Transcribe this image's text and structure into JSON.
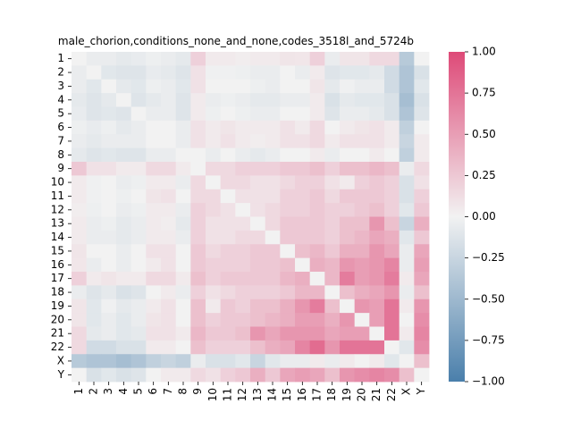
{
  "chart_data": {
    "type": "heatmap",
    "title": "male_chorion,conditions_none_and_none,codes_3518l_and_5724b",
    "xlabel": "",
    "ylabel": "",
    "labels": [
      "1",
      "2",
      "3",
      "4",
      "5",
      "6",
      "7",
      "8",
      "9",
      "10",
      "11",
      "12",
      "13",
      "14",
      "15",
      "16",
      "17",
      "18",
      "19",
      "20",
      "21",
      "22",
      "X",
      "Y"
    ],
    "colorbar": {
      "min": -1.0,
      "max": 1.0,
      "ticks": [
        "1.00",
        "0.75",
        "0.50",
        "0.25",
        "0.00",
        "−0.25",
        "−0.50",
        "−0.75",
        "−1.00"
      ]
    },
    "colors": {
      "negative": "#4a7fab",
      "neutral": "#f2f2f2",
      "positive": "#de4a78"
    },
    "values": [
      [
        0.0,
        -0.05,
        -0.05,
        -0.08,
        -0.06,
        -0.03,
        -0.05,
        -0.08,
        0.2,
        0.05,
        0.05,
        0.03,
        0.05,
        0.05,
        0.08,
        0.07,
        0.2,
        -0.05,
        0.08,
        0.08,
        0.15,
        0.15,
        -0.35,
        0.0
      ],
      [
        -0.05,
        0.0,
        -0.1,
        -0.12,
        -0.12,
        -0.06,
        -0.08,
        -0.12,
        0.1,
        -0.02,
        -0.02,
        -0.03,
        -0.05,
        -0.05,
        0.0,
        -0.05,
        0.05,
        -0.12,
        -0.1,
        -0.1,
        -0.08,
        -0.2,
        -0.4,
        -0.15
      ],
      [
        -0.05,
        -0.1,
        0.0,
        -0.08,
        -0.1,
        -0.03,
        -0.05,
        -0.1,
        0.1,
        0.0,
        0.0,
        0.0,
        -0.03,
        -0.05,
        0.0,
        0.0,
        0.08,
        -0.08,
        -0.02,
        -0.05,
        -0.05,
        -0.2,
        -0.4,
        -0.1
      ],
      [
        -0.08,
        -0.12,
        -0.08,
        0.0,
        -0.12,
        -0.08,
        -0.05,
        -0.12,
        0.05,
        -0.05,
        -0.03,
        -0.05,
        -0.08,
        -0.08,
        -0.05,
        -0.05,
        0.05,
        -0.15,
        -0.08,
        -0.1,
        -0.1,
        -0.15,
        -0.45,
        -0.15
      ],
      [
        -0.06,
        -0.12,
        -0.1,
        -0.12,
        0.0,
        -0.05,
        -0.05,
        -0.12,
        0.05,
        -0.03,
        0.0,
        -0.03,
        -0.05,
        -0.05,
        0.0,
        0.0,
        0.05,
        -0.12,
        -0.05,
        -0.05,
        -0.08,
        -0.15,
        -0.4,
        -0.12
      ],
      [
        -0.03,
        -0.06,
        -0.03,
        -0.08,
        -0.05,
        0.0,
        0.0,
        -0.05,
        0.1,
        0.05,
        0.08,
        0.05,
        0.05,
        0.05,
        0.1,
        0.05,
        0.15,
        0.0,
        0.05,
        0.08,
        0.1,
        0.05,
        -0.3,
        0.0
      ],
      [
        -0.05,
        -0.08,
        -0.05,
        -0.05,
        -0.05,
        0.0,
        0.0,
        -0.05,
        0.1,
        0.05,
        0.1,
        0.05,
        0.03,
        0.05,
        0.1,
        0.1,
        0.15,
        0.05,
        0.1,
        0.1,
        0.1,
        0.05,
        -0.25,
        0.05
      ],
      [
        -0.08,
        -0.12,
        -0.1,
        -0.12,
        -0.12,
        -0.05,
        -0.05,
        0.0,
        0.0,
        -0.05,
        0.0,
        -0.05,
        -0.08,
        -0.05,
        0.0,
        0.0,
        0.05,
        -0.05,
        0.0,
        0.0,
        0.05,
        0.0,
        -0.3,
        0.05
      ],
      [
        0.25,
        0.1,
        0.1,
        0.05,
        0.05,
        0.15,
        0.15,
        0.05,
        0.0,
        0.15,
        0.15,
        0.2,
        0.2,
        0.2,
        0.25,
        0.25,
        0.3,
        0.2,
        0.3,
        0.3,
        0.35,
        0.3,
        -0.05,
        0.15
      ],
      [
        0.05,
        -0.02,
        0.0,
        -0.05,
        -0.03,
        0.05,
        0.05,
        -0.05,
        0.15,
        0.0,
        0.15,
        0.15,
        0.1,
        0.1,
        0.15,
        0.2,
        0.2,
        0.1,
        0.05,
        0.2,
        0.25,
        0.2,
        -0.15,
        0.1
      ],
      [
        0.05,
        -0.02,
        0.0,
        -0.03,
        0.0,
        0.08,
        0.1,
        0.0,
        0.15,
        0.15,
        0.0,
        0.1,
        0.1,
        0.1,
        0.2,
        0.2,
        0.25,
        0.15,
        0.25,
        0.25,
        0.25,
        0.2,
        -0.15,
        0.2
      ],
      [
        0.03,
        -0.03,
        0.0,
        -0.05,
        -0.03,
        0.05,
        0.05,
        -0.05,
        0.2,
        0.15,
        0.1,
        0.0,
        0.1,
        0.15,
        0.2,
        0.2,
        0.25,
        0.2,
        0.2,
        0.25,
        0.3,
        0.2,
        -0.1,
        0.25
      ],
      [
        0.05,
        -0.05,
        -0.03,
        -0.08,
        -0.05,
        0.05,
        0.03,
        -0.08,
        0.2,
        0.1,
        0.1,
        0.1,
        0.0,
        0.15,
        0.25,
        0.25,
        0.25,
        0.2,
        0.3,
        0.3,
        0.55,
        0.3,
        -0.25,
        0.4
      ],
      [
        0.05,
        -0.05,
        -0.05,
        -0.08,
        -0.05,
        0.05,
        0.05,
        -0.05,
        0.2,
        0.1,
        0.1,
        0.15,
        0.15,
        0.0,
        0.25,
        0.25,
        0.25,
        0.2,
        0.3,
        0.35,
        0.45,
        0.4,
        -0.1,
        0.25
      ],
      [
        0.08,
        0.0,
        0.0,
        -0.05,
        0.0,
        0.1,
        0.1,
        0.0,
        0.25,
        0.15,
        0.2,
        0.2,
        0.25,
        0.25,
        0.0,
        0.3,
        0.35,
        0.25,
        0.4,
        0.4,
        0.55,
        0.45,
        -0.05,
        0.45
      ],
      [
        0.07,
        -0.05,
        0.0,
        -0.05,
        0.0,
        0.05,
        0.1,
        0.0,
        0.25,
        0.2,
        0.2,
        0.2,
        0.25,
        0.25,
        0.3,
        0.0,
        0.4,
        0.35,
        0.55,
        0.5,
        0.55,
        0.65,
        -0.05,
        0.5
      ],
      [
        0.2,
        0.05,
        0.08,
        0.05,
        0.05,
        0.15,
        0.15,
        0.05,
        0.3,
        0.2,
        0.25,
        0.25,
        0.25,
        0.25,
        0.35,
        0.4,
        0.0,
        0.35,
        0.7,
        0.5,
        0.55,
        0.7,
        0.05,
        0.45
      ],
      [
        -0.05,
        -0.12,
        -0.08,
        -0.15,
        -0.12,
        0.0,
        0.05,
        -0.05,
        0.2,
        0.1,
        0.15,
        0.2,
        0.2,
        0.2,
        0.25,
        0.35,
        0.35,
        0.0,
        0.3,
        0.4,
        0.45,
        0.55,
        -0.05,
        0.3
      ],
      [
        0.08,
        -0.1,
        -0.02,
        -0.08,
        -0.05,
        0.05,
        0.1,
        0.0,
        0.3,
        0.05,
        0.25,
        0.2,
        0.3,
        0.3,
        0.4,
        0.55,
        0.7,
        0.3,
        0.0,
        0.55,
        0.5,
        0.75,
        0.05,
        0.55
      ],
      [
        0.08,
        -0.1,
        -0.05,
        -0.1,
        -0.05,
        0.08,
        0.1,
        0.0,
        0.3,
        0.2,
        0.25,
        0.25,
        0.3,
        0.35,
        0.4,
        0.5,
        0.5,
        0.4,
        0.55,
        0.0,
        0.5,
        0.75,
        0.0,
        0.6
      ],
      [
        0.15,
        -0.08,
        -0.05,
        -0.1,
        -0.08,
        0.1,
        0.1,
        0.05,
        0.35,
        0.25,
        0.25,
        0.3,
        0.55,
        0.45,
        0.55,
        0.55,
        0.55,
        0.45,
        0.5,
        0.5,
        0.0,
        0.75,
        0.05,
        0.65
      ],
      [
        0.15,
        -0.2,
        -0.2,
        -0.15,
        -0.15,
        0.05,
        0.05,
        0.0,
        0.3,
        0.2,
        0.2,
        0.2,
        0.3,
        0.4,
        0.45,
        0.65,
        0.8,
        0.55,
        0.75,
        0.75,
        0.75,
        0.0,
        -0.1,
        0.6
      ],
      [
        -0.35,
        -0.4,
        -0.4,
        -0.45,
        -0.4,
        -0.3,
        -0.25,
        -0.3,
        -0.05,
        -0.15,
        -0.15,
        -0.1,
        -0.25,
        -0.1,
        -0.05,
        -0.05,
        0.05,
        -0.05,
        0.05,
        0.0,
        0.05,
        -0.1,
        0.0,
        0.3
      ],
      [
        0.0,
        -0.15,
        -0.1,
        -0.15,
        -0.12,
        0.0,
        0.05,
        0.05,
        0.15,
        0.1,
        0.2,
        0.25,
        0.4,
        0.25,
        0.45,
        0.5,
        0.45,
        0.3,
        0.55,
        0.6,
        0.65,
        0.6,
        0.3,
        0.0
      ]
    ]
  }
}
